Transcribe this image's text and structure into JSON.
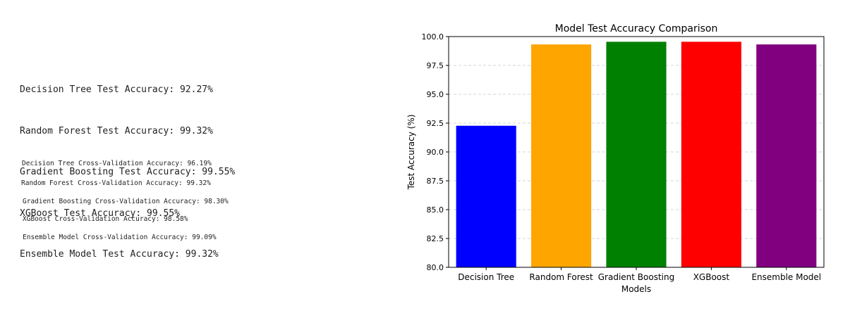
{
  "test_results": [
    "Decision Tree Test Accuracy: 92.27%",
    "Random Forest Test Accuracy: 99.32%",
    "Gradient Boosting Test Accuracy: 99.55%",
    "XGBoost Test Accuracy: 99.55%",
    "Ensemble Model Test Accuracy: 99.32%"
  ],
  "cv_results": [
    "Decision Tree Cross-Validation Accuracy: 96.19%",
    "Random Forest Cross-Validation Accuracy: 99.32%",
    "Gradient Boosting Cross-Validation Accuracy: 98.30%",
    "XGBoost Cross-Validation Accuracy: 98.58%",
    "Ensemble Model Cross-Validation Accuracy: 99.09%"
  ],
  "chart_data": {
    "type": "bar",
    "title": "Model Test Accuracy Comparison",
    "xlabel": "Models",
    "ylabel": "Test Accuracy (%)",
    "categories": [
      "Decision Tree",
      "Random Forest",
      "Gradient Boosting",
      "XGBoost",
      "Ensemble Model"
    ],
    "values": [
      92.27,
      99.32,
      99.55,
      99.55,
      99.32
    ],
    "colors": [
      "#0000ff",
      "#ffa500",
      "#008000",
      "#ff0000",
      "#800080"
    ],
    "ylim": [
      80.0,
      100.0
    ],
    "yticks": [
      "80.0",
      "82.5",
      "85.0",
      "87.5",
      "90.0",
      "92.5",
      "95.0",
      "97.5",
      "100.0"
    ],
    "grid": "y-dashed",
    "legend": "none"
  }
}
